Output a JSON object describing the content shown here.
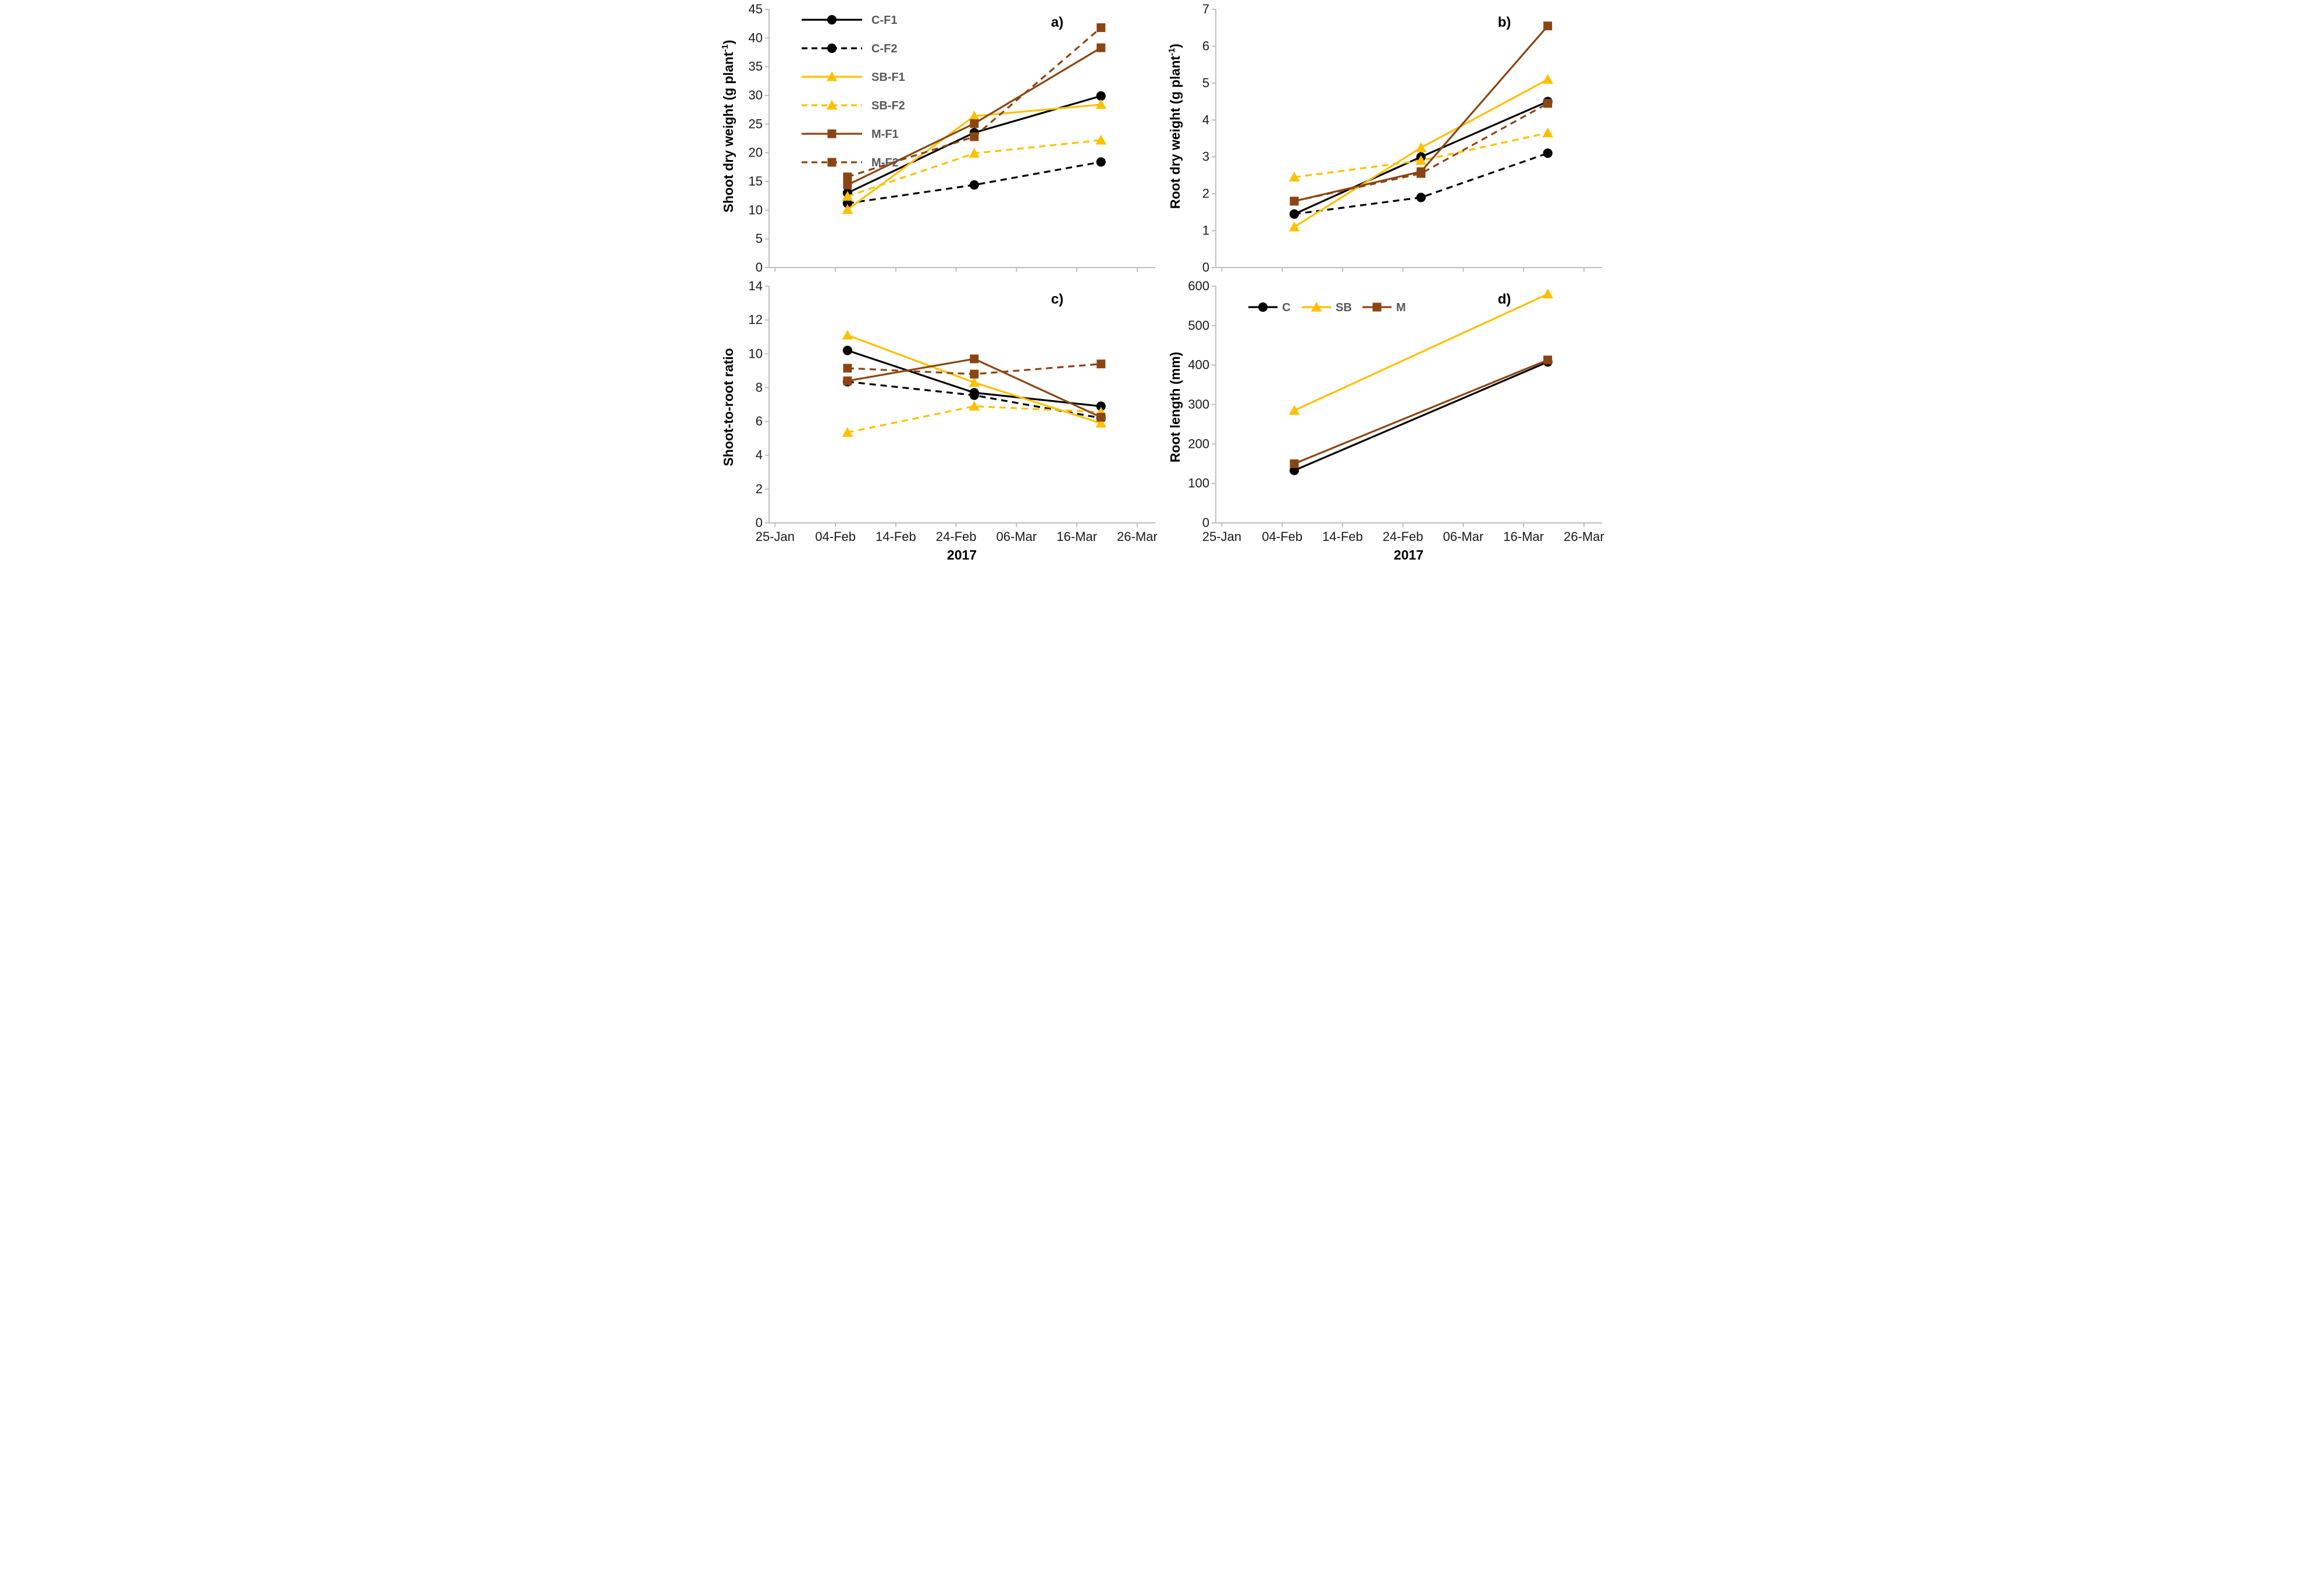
{
  "page": {
    "year_label": "2017"
  },
  "colors": {
    "c_black": "#000000",
    "sb_gold": "#FFC000",
    "m_brown": "#8B4513",
    "axis_gray": "#BFBFBF",
    "legend_text_gray": "#595959",
    "tick_text": "#1a1a1a"
  },
  "chart_data": [
    {
      "type": "line",
      "id": "a",
      "letter": "a)",
      "ylabel_pre": "Shoot dry weight (g plant",
      "ylabel_sup": "-1",
      "ylabel_post": ")",
      "ylim": [
        0,
        45
      ],
      "yticks": [
        0,
        5,
        10,
        15,
        20,
        25,
        30,
        35,
        40,
        45
      ],
      "xlim": [
        -1,
        63
      ],
      "xtick_days": [
        0,
        10,
        20,
        30,
        40,
        50,
        60
      ],
      "xtick_labels": [
        "25-Jan",
        "04-Feb",
        "14-Feb",
        "24-Feb",
        "06-Mar",
        "16-Mar",
        "26-Mar"
      ],
      "show_x_labels": false,
      "x_days": [
        12,
        33,
        54
      ],
      "grid": false,
      "legend": {
        "layout": "column",
        "position": "upper-left"
      },
      "series": [
        {
          "name": "C-F1",
          "color": "#000000",
          "dash": "solid",
          "marker": "circle",
          "values": [
            13.0,
            23.5,
            29.9
          ]
        },
        {
          "name": "C-F2",
          "color": "#000000",
          "dash": "dashed",
          "marker": "circle",
          "values": [
            11.2,
            14.4,
            18.4
          ]
        },
        {
          "name": "SB-F1",
          "color": "#FFC000",
          "dash": "solid",
          "marker": "triangle",
          "values": [
            10.1,
            26.4,
            28.4
          ]
        },
        {
          "name": "SB-F2",
          "color": "#FFC000",
          "dash": "dashed",
          "marker": "triangle",
          "values": [
            12.4,
            19.9,
            22.2
          ]
        },
        {
          "name": "M-F1",
          "color": "#8B4513",
          "dash": "solid",
          "marker": "square",
          "values": [
            14.4,
            25.1,
            38.3
          ]
        },
        {
          "name": "M-F2",
          "color": "#8B4513",
          "dash": "dashed",
          "marker": "square",
          "values": [
            15.8,
            22.8,
            41.8
          ]
        }
      ]
    },
    {
      "type": "line",
      "id": "b",
      "letter": "b)",
      "ylabel_pre": "Root dry weight (g plant",
      "ylabel_sup": "-1",
      "ylabel_post": ")",
      "ylim": [
        0,
        7
      ],
      "yticks": [
        0,
        1,
        2,
        3,
        4,
        5,
        6,
        7
      ],
      "xlim": [
        -1,
        63
      ],
      "xtick_days": [
        0,
        10,
        20,
        30,
        40,
        50,
        60
      ],
      "xtick_labels": [
        "25-Jan",
        "04-Feb",
        "14-Feb",
        "24-Feb",
        "06-Mar",
        "16-Mar",
        "26-Mar"
      ],
      "show_x_labels": false,
      "x_days": [
        12,
        33,
        54
      ],
      "grid": false,
      "legend": null,
      "series": [
        {
          "name": "C-F1",
          "color": "#000000",
          "dash": "solid",
          "marker": "circle",
          "values": [
            1.45,
            3.0,
            4.5
          ]
        },
        {
          "name": "C-F2",
          "color": "#000000",
          "dash": "dashed",
          "marker": "circle",
          "values": [
            1.45,
            1.9,
            3.1
          ]
        },
        {
          "name": "SB-F1",
          "color": "#FFC000",
          "dash": "solid",
          "marker": "triangle",
          "values": [
            1.1,
            3.25,
            5.1
          ]
        },
        {
          "name": "SB-F2",
          "color": "#FFC000",
          "dash": "dashed",
          "marker": "triangle",
          "values": [
            2.45,
            2.9,
            3.65
          ]
        },
        {
          "name": "M-F1",
          "color": "#8B4513",
          "dash": "solid",
          "marker": "square",
          "values": [
            1.8,
            2.6,
            6.55
          ]
        },
        {
          "name": "M-F2",
          "color": "#8B4513",
          "dash": "dashed",
          "marker": "square",
          "values": [
            1.8,
            2.55,
            4.45
          ]
        }
      ]
    },
    {
      "type": "line",
      "id": "c",
      "letter": "c)",
      "ylabel_pre": "Shoot-to-root ratio",
      "ylabel_sup": "",
      "ylabel_post": "",
      "ylim": [
        0,
        14
      ],
      "yticks": [
        0,
        2,
        4,
        6,
        8,
        10,
        12,
        14
      ],
      "xlim": [
        -1,
        63
      ],
      "xtick_days": [
        0,
        10,
        20,
        30,
        40,
        50,
        60
      ],
      "xtick_labels": [
        "25-Jan",
        "04-Feb",
        "14-Feb",
        "24-Feb",
        "06-Mar",
        "16-Mar",
        "26-Mar"
      ],
      "show_x_labels": true,
      "x_days": [
        12,
        33,
        54
      ],
      "grid": false,
      "legend": null,
      "series": [
        {
          "name": "C-F1",
          "color": "#000000",
          "dash": "solid",
          "marker": "circle",
          "values": [
            10.2,
            7.7,
            6.9
          ]
        },
        {
          "name": "C-F2",
          "color": "#000000",
          "dash": "dashed",
          "marker": "circle",
          "values": [
            8.35,
            7.55,
            6.2
          ]
        },
        {
          "name": "SB-F1",
          "color": "#FFC000",
          "dash": "solid",
          "marker": "triangle",
          "values": [
            11.1,
            8.3,
            5.9
          ]
        },
        {
          "name": "SB-F2",
          "color": "#FFC000",
          "dash": "dashed",
          "marker": "triangle",
          "values": [
            5.35,
            6.9,
            6.55
          ]
        },
        {
          "name": "M-F1",
          "color": "#8B4513",
          "dash": "solid",
          "marker": "square",
          "values": [
            8.4,
            9.7,
            6.25
          ]
        },
        {
          "name": "M-F2",
          "color": "#8B4513",
          "dash": "dashed",
          "marker": "square",
          "values": [
            9.15,
            8.8,
            9.4
          ]
        }
      ]
    },
    {
      "type": "line",
      "id": "d",
      "letter": "d)",
      "ylabel_pre": "Root length (mm)",
      "ylabel_sup": "",
      "ylabel_post": "",
      "ylim": [
        0,
        600
      ],
      "yticks": [
        0,
        100,
        200,
        300,
        400,
        500,
        600
      ],
      "xlim": [
        -1,
        63
      ],
      "xtick_days": [
        0,
        10,
        20,
        30,
        40,
        50,
        60
      ],
      "xtick_labels": [
        "25-Jan",
        "04-Feb",
        "14-Feb",
        "24-Feb",
        "06-Mar",
        "16-Mar",
        "26-Mar"
      ],
      "show_x_labels": true,
      "x_days": [
        12,
        54
      ],
      "grid": false,
      "legend": {
        "layout": "row",
        "position": "top"
      },
      "series": [
        {
          "name": "C",
          "color": "#000000",
          "dash": "solid",
          "marker": "circle",
          "values": [
            133,
            408
          ]
        },
        {
          "name": "SB",
          "color": "#FFC000",
          "dash": "solid",
          "marker": "triangle",
          "values": [
            285,
            580
          ]
        },
        {
          "name": "M",
          "color": "#8B4513",
          "dash": "solid",
          "marker": "square",
          "values": [
            150,
            413
          ]
        }
      ]
    }
  ]
}
